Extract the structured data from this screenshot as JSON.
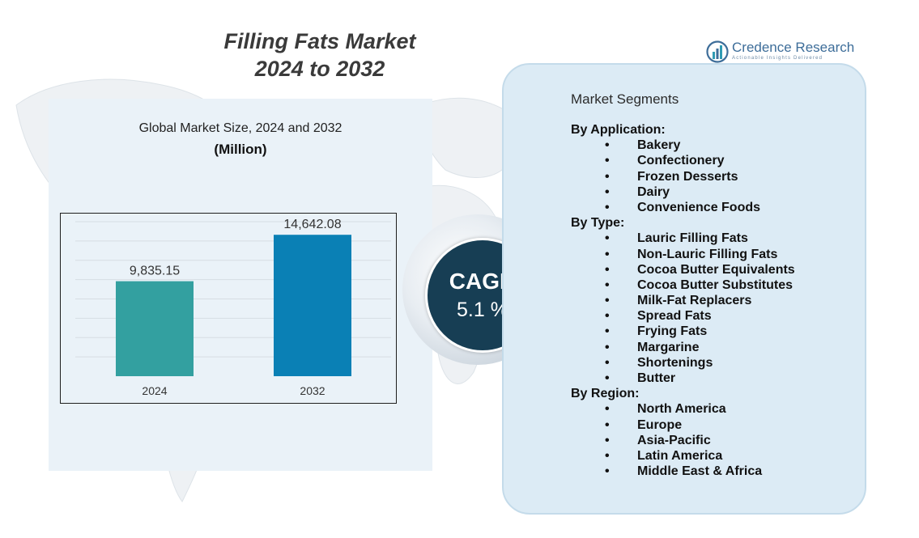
{
  "header": {
    "title_line1": "Filling Fats Market",
    "title_line2": "2024 to 2032"
  },
  "logo": {
    "name": "Credence Research",
    "tagline": "Actionable Insights Delivered"
  },
  "chart_data": {
    "type": "bar",
    "title": "Global Market Size, 2024 and 2032",
    "subtitle": "(Million)",
    "categories": [
      "2024",
      "2032"
    ],
    "values": [
      9835.15,
      14642.08
    ],
    "value_labels": [
      "9,835.15",
      "14,642.08"
    ],
    "colors": [
      "#33a0a0",
      "#0a80b5"
    ],
    "ylim": [
      0,
      16000
    ],
    "grid": true,
    "legend": "none"
  },
  "cagr": {
    "label": "CAGR",
    "value": "5.1 %"
  },
  "segments": {
    "title": "Market Segments",
    "groups": [
      {
        "heading": "By Application:",
        "items": [
          "Bakery",
          "Confectionery",
          "Frozen Desserts",
          "Dairy",
          "Convenience Foods"
        ]
      },
      {
        "heading": "By Type:",
        "items": [
          "Lauric Filling Fats",
          "Non-Lauric Filling Fats",
          "Cocoa Butter Equivalents",
          "Cocoa Butter Substitutes",
          "Milk-Fat Replacers",
          "Spread Fats",
          "Frying Fats",
          "Margarine",
          "Shortenings",
          "Butter"
        ]
      },
      {
        "heading": "By Region:",
        "items": [
          "North America",
          "Europe",
          "Asia-Pacific",
          "Latin America",
          "Middle East & Africa"
        ]
      }
    ]
  }
}
